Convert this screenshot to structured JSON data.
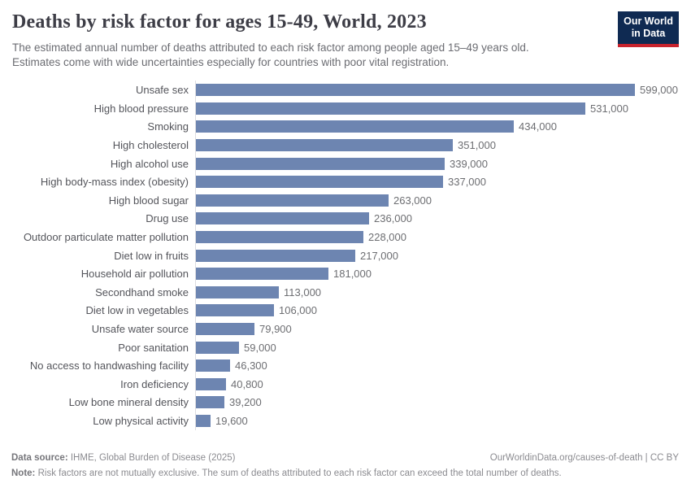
{
  "header": {
    "title": "Deaths by risk factor for ages 15-49, World, 2023",
    "subtitle_line1": "The estimated annual number of deaths attributed to each risk factor among people aged 15–49 years old.",
    "subtitle_line2": "Estimates come with wide uncertainties especially for countries with poor vital registration.",
    "logo": {
      "line1": "Our World",
      "line2": "in Data",
      "bg_color": "#0f2a52",
      "accent_color": "#c8232d"
    }
  },
  "chart_data": {
    "type": "bar",
    "orientation": "horizontal",
    "title": "Deaths by risk factor for ages 15-49, World, 2023",
    "xlabel": "",
    "ylabel": "",
    "xlim": [
      0,
      599000
    ],
    "grid": false,
    "legend": "none",
    "bar_color": "#6d85b1",
    "categories": [
      "Unsafe sex",
      "High blood pressure",
      "Smoking",
      "High cholesterol",
      "High alcohol use",
      "High body-mass index (obesity)",
      "High blood sugar",
      "Drug use",
      "Outdoor particulate matter pollution",
      "Diet low in fruits",
      "Household air pollution",
      "Secondhand smoke",
      "Diet low in vegetables",
      "Unsafe water source",
      "Poor sanitation",
      "No access to handwashing facility",
      "Iron deficiency",
      "Low bone mineral density",
      "Low physical activity"
    ],
    "values": [
      599000,
      531000,
      434000,
      351000,
      339000,
      337000,
      263000,
      236000,
      228000,
      217000,
      181000,
      113000,
      106000,
      79900,
      59000,
      46300,
      40800,
      39200,
      19600
    ],
    "value_labels": [
      "599,000",
      "531,000",
      "434,000",
      "351,000",
      "339,000",
      "337,000",
      "263,000",
      "236,000",
      "228,000",
      "217,000",
      "181,000",
      "113,000",
      "106,000",
      "79,900",
      "59,000",
      "46,300",
      "40,800",
      "39,200",
      "19,600"
    ]
  },
  "footer": {
    "source_label": "Data source:",
    "source_text": " IHME, Global Burden of Disease (2025)",
    "link_text": "OurWorldinData.org/causes-of-death | CC BY",
    "note_label": "Note:",
    "note_text": " Risk factors are not mutually exclusive. The sum of deaths attributed to each risk factor can exceed the total number of deaths."
  }
}
